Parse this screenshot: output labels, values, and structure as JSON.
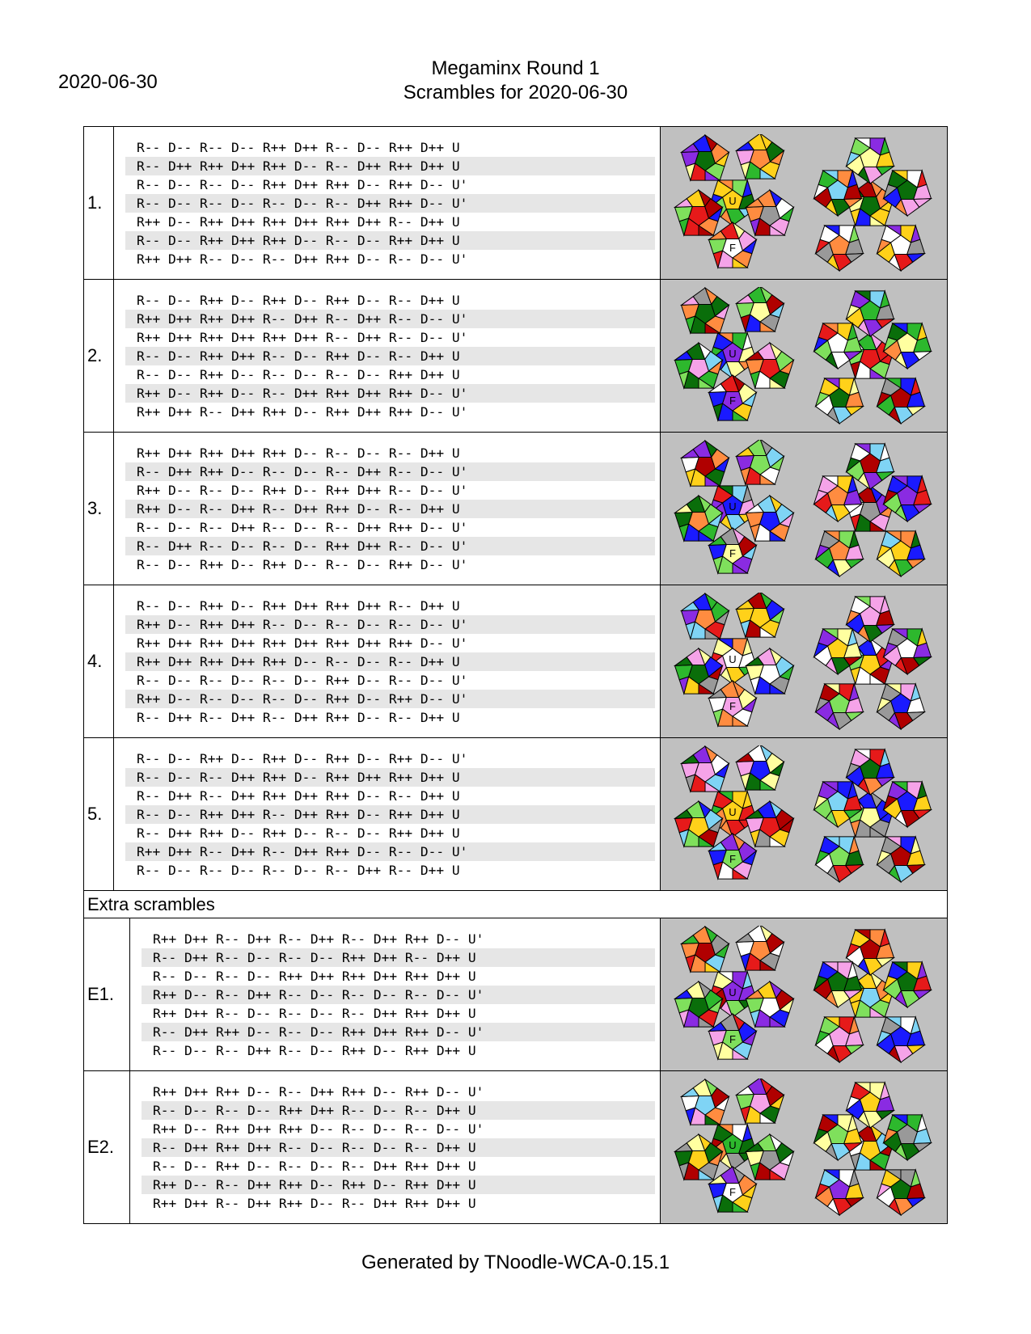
{
  "header": {
    "date": "2020-06-30",
    "title": "Megaminx Round 1",
    "subtitle": "Scrambles for 2020-06-30"
  },
  "face_labels": {
    "upper": "U",
    "front": "F"
  },
  "colors": {
    "image_background": "#c0c0c0",
    "shaded_line": "#e6e6e6"
  },
  "scrambles": [
    {
      "label": "1.",
      "lines": [
        "R-- D-- R-- D-- R++ D++ R-- D-- R++ D++ U",
        "R-- D++ R++ D++ R++ D-- R-- D++ R++ D++ U",
        "R-- D-- R-- D-- R++ D++ R++ D-- R++ D-- U'",
        "R-- D-- R-- D-- R-- D-- R-- D++ R++ D-- U'",
        "R++ D-- R++ D++ R++ D++ R++ D++ R-- D++ U",
        "R-- D-- R++ D++ R++ D-- R-- D-- R++ D++ U",
        "R++ D++ R-- D-- R-- D++ R++ D-- R-- D-- U'"
      ]
    },
    {
      "label": "2.",
      "lines": [
        "R-- D-- R++ D-- R++ D-- R++ D-- R-- D++ U",
        "R++ D++ R++ D++ R-- D++ R-- D++ R-- D-- U'",
        "R++ D++ R++ D++ R++ D++ R-- D++ R-- D-- U'",
        "R-- D-- R++ D++ R-- D-- R++ D-- R-- D++ U",
        "R-- D-- R++ D-- R-- D-- R-- D-- R++ D++ U",
        "R++ D-- R++ D-- R-- D++ R++ D++ R++ D-- U'",
        "R++ D++ R-- D++ R++ D-- R++ D++ R++ D-- U'"
      ]
    },
    {
      "label": "3.",
      "lines": [
        "R++ D++ R++ D++ R++ D-- R-- D-- R-- D++ U",
        "R-- D++ R++ D-- R-- D-- R-- D++ R-- D-- U'",
        "R++ D-- R-- D-- R++ D-- R++ D++ R-- D-- U'",
        "R++ D-- R-- D++ R-- D++ R++ D-- R-- D++ U",
        "R-- D-- R-- D++ R-- D-- R-- D++ R++ D-- U'",
        "R-- D++ R-- D-- R-- D-- R++ D++ R-- D-- U'",
        "R-- D-- R++ D-- R++ D-- R-- D-- R++ D-- U'"
      ]
    },
    {
      "label": "4.",
      "lines": [
        "R-- D-- R++ D-- R++ D++ R++ D++ R-- D++ U",
        "R++ D-- R++ D++ R-- D-- R-- D-- R-- D-- U'",
        "R++ D++ R++ D++ R++ D++ R++ D++ R++ D-- U'",
        "R++ D++ R++ D++ R++ D-- R-- D-- R-- D++ U",
        "R-- D-- R-- D-- R-- D-- R++ D-- R-- D-- U'",
        "R++ D-- R-- D-- R-- D-- R++ D-- R++ D-- U'",
        "R-- D++ R-- D++ R-- D++ R++ D-- R-- D++ U"
      ]
    },
    {
      "label": "5.",
      "lines": [
        "R-- D-- R++ D-- R++ D-- R++ D-- R++ D-- U'",
        "R-- D-- R-- D++ R++ D-- R++ D++ R++ D++ U",
        "R-- D++ R-- D++ R++ D++ R++ D-- R-- D++ U",
        "R-- D-- R++ D++ R-- D++ R++ D-- R++ D++ U",
        "R-- D++ R++ D-- R++ D-- R-- D-- R++ D++ U",
        "R++ D++ R-- D++ R-- D++ R++ D-- R-- D-- U'",
        "R-- D-- R-- D-- R-- D-- R-- D++ R-- D++ U"
      ]
    }
  ],
  "extra_header": "Extra scrambles",
  "extras": [
    {
      "label": "E1.",
      "lines": [
        "R++ D++ R-- D++ R-- D++ R-- D++ R++ D-- U'",
        "R-- D++ R-- D-- R-- D-- R++ D++ R-- D++ U",
        "R-- D-- R-- D-- R++ D++ R++ D++ R++ D++ U",
        "R++ D-- R-- D++ R-- D-- R-- D-- R-- D-- U'",
        "R++ D++ R-- D-- R-- D-- R-- D++ R++ D++ U",
        "R-- D++ R++ D-- R-- D-- R++ D++ R++ D-- U'",
        "R-- D-- R-- D++ R-- D-- R++ D-- R++ D++ U"
      ]
    },
    {
      "label": "E2.",
      "lines": [
        "R++ D++ R++ D-- R-- D++ R++ D-- R++ D-- U'",
        "R-- D-- R-- D-- R++ D++ R-- D-- R-- D++ U",
        "R++ D-- R++ D++ R++ D-- R-- D-- R-- D-- U'",
        "R-- D++ R++ D++ R-- D-- R-- D-- R-- D++ U",
        "R-- D-- R++ D-- R-- D-- R-- D++ R++ D++ U",
        "R++ D-- R-- D++ R++ D-- R++ D-- R++ D++ U",
        "R++ D++ R-- D++ R++ D-- R-- D++ R++ D++ U"
      ]
    }
  ],
  "footer": "Generated by TNoodle-WCA-0.15.1"
}
